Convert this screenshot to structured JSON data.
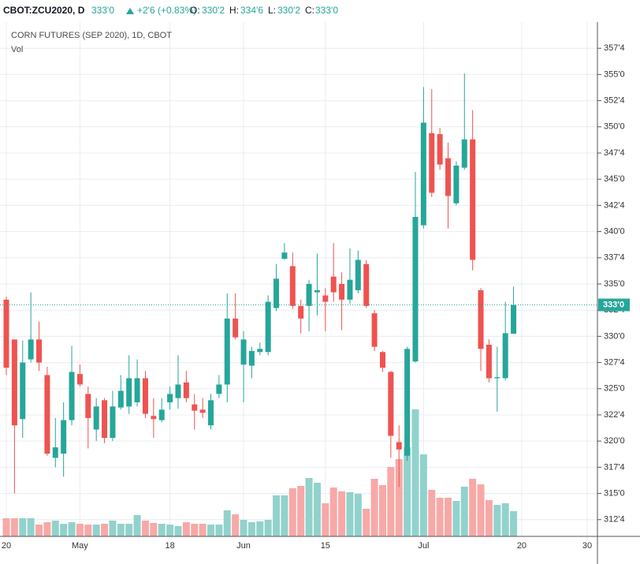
{
  "header": {
    "symbol": "CBOT:ZCU2020, D",
    "last": "333'0",
    "change": "+2'6 (+0.83%)",
    "o_label": "O:",
    "open": "330'2",
    "h_label": "H:",
    "high": "334'6",
    "l_label": "L:",
    "low": "330'2",
    "c_label": "C:",
    "close": "333'0"
  },
  "chart_data": {
    "type": "candlestick",
    "title": "CORN FUTURES (SEP 2020), 1D, CBOT",
    "volume_label": "Vol",
    "categories": [
      "20",
      null,
      null,
      null,
      null,
      null,
      null,
      null,
      null,
      "May",
      null,
      null,
      null,
      null,
      null,
      null,
      null,
      null,
      null,
      null,
      "18",
      null,
      null,
      null,
      null,
      null,
      null,
      null,
      null,
      "Jun",
      null,
      null,
      null,
      null,
      null,
      null,
      null,
      null,
      null,
      "15",
      null,
      null,
      null,
      null,
      null,
      null,
      null,
      null,
      null,
      null,
      null,
      "Jul",
      null,
      null,
      null,
      null,
      null,
      null,
      null,
      null,
      null,
      null,
      null,
      "20",
      null,
      null,
      null,
      null,
      null,
      null,
      null,
      "30"
    ],
    "open": [
      333.5,
      329.7,
      322.1,
      327.8,
      329.7,
      326.3,
      318.4,
      318.8,
      322.0,
      326.4,
      324.5,
      321.1,
      323.9,
      320.3,
      323.2,
      323.3,
      323.7,
      326.0,
      322.4,
      322.0,
      323.7,
      324.1,
      325.6,
      323.5,
      323.0,
      321.5,
      324.5,
      325.4,
      331.7,
      327.3,
      327.2,
      328.5,
      328.5,
      332.7,
      337.4,
      336.7,
      332.9,
      332.9,
      334.2,
      333.9,
      335.7,
      335.0,
      333.5,
      334.4,
      336.9,
      332.2,
      328.5,
      326.6,
      319.9,
      318.6,
      327.6,
      340.6,
      349.4,
      349.3,
      347.0,
      342.7,
      346.1,
      348.8,
      334.4,
      329.2,
      326.0,
      326.0,
      330.25,
      null,
      null,
      null,
      null,
      null,
      null,
      null,
      null,
      null
    ],
    "high": [
      333.8,
      329.7,
      329.6,
      334.2,
      331.4,
      327.1,
      322.2,
      323.7,
      329.1,
      327.3,
      325.2,
      324.1,
      324.1,
      324.8,
      326.3,
      328.2,
      327.8,
      326.7,
      324.1,
      324.1,
      325.2,
      328.2,
      326.7,
      324.5,
      324.1,
      324.5,
      326.3,
      334.1,
      334.1,
      330.5,
      329.0,
      329.4,
      333.9,
      336.9,
      338.9,
      338.0,
      333.5,
      335.4,
      337.9,
      334.6,
      338.9,
      336.1,
      338.4,
      338.2,
      337.3,
      332.5,
      328.6,
      326.7,
      321.5,
      329.0,
      345.7,
      353.8,
      353.6,
      349.9,
      348.5,
      346.7,
      355.1,
      351.6,
      334.6,
      329.7,
      329.0,
      333.3,
      334.75,
      null,
      null,
      null,
      null,
      null,
      null,
      null,
      null,
      null
    ],
    "low": [
      326.3,
      315.0,
      320.3,
      327.5,
      326.7,
      318.6,
      317.5,
      316.6,
      321.5,
      325.2,
      319.3,
      320.0,
      319.8,
      320.0,
      323.0,
      322.6,
      323.3,
      322.2,
      320.3,
      321.8,
      323.0,
      323.1,
      323.7,
      321.1,
      322.2,
      321.1,
      324.1,
      323.7,
      329.7,
      323.7,
      326.0,
      328.2,
      328.2,
      332.4,
      337.3,
      332.6,
      330.3,
      330.5,
      332.0,
      330.5,
      333.3,
      330.6,
      333.1,
      334.1,
      332.7,
      328.6,
      326.6,
      318.4,
      315.6,
      318.1,
      327.5,
      340.3,
      343.3,
      345.9,
      340.3,
      342.5,
      345.9,
      336.3,
      326.7,
      325.6,
      322.8,
      325.8,
      330.25,
      null,
      null,
      null,
      null,
      null,
      null,
      null,
      null,
      null
    ],
    "close": [
      327.0,
      321.5,
      327.5,
      329.7,
      327.5,
      318.8,
      319.4,
      322.0,
      326.6,
      325.4,
      322.2,
      323.3,
      320.3,
      323.3,
      324.8,
      326.0,
      326.0,
      322.6,
      322.1,
      323.0,
      324.5,
      325.4,
      324.1,
      322.9,
      322.7,
      323.9,
      325.4,
      331.7,
      329.9,
      329.7,
      328.6,
      328.8,
      333.3,
      335.5,
      338.0,
      332.9,
      331.7,
      335.0,
      334.4,
      333.3,
      334.2,
      333.5,
      335.4,
      337.3,
      332.9,
      329.0,
      327.0,
      320.5,
      319.2,
      328.8,
      341.4,
      350.4,
      343.7,
      346.4,
      343.4,
      346.3,
      348.8,
      337.3,
      328.8,
      326.0,
      326.1,
      330.3,
      333.0,
      null,
      null,
      null,
      null,
      null,
      null,
      null,
      null,
      null
    ],
    "volume": [
      23,
      23,
      23,
      23,
      15,
      18,
      20,
      16,
      18,
      16,
      15,
      15,
      16,
      20,
      16,
      16,
      27,
      20,
      17,
      16,
      15,
      13,
      18,
      16,
      16,
      15,
      15,
      33,
      28,
      21,
      18,
      19,
      21,
      52,
      52,
      61,
      64,
      74,
      68,
      42,
      62,
      57,
      56,
      54,
      35,
      73,
      65,
      88,
      98,
      113,
      161,
      104,
      59,
      49,
      49,
      45,
      63,
      73,
      66,
      46,
      40,
      42,
      32,
      null,
      null,
      null,
      null,
      null,
      null,
      null,
      null,
      null
    ],
    "up_color": "#26a69a",
    "down_color": "#ef5350",
    "up_volume_color": "#92d2cc",
    "down_volume_color": "#f7a9a7",
    "ylim": [
      310.9,
      360
    ],
    "yticks": [
      {
        "value": 312.5,
        "label": "312'4"
      },
      {
        "value": 315,
        "label": "315'0"
      },
      {
        "value": 317.5,
        "label": "317'4"
      },
      {
        "value": 320,
        "label": "320'0"
      },
      {
        "value": 322.5,
        "label": "322'4"
      },
      {
        "value": 325,
        "label": "325'0"
      },
      {
        "value": 327.5,
        "label": "327'4"
      },
      {
        "value": 330,
        "label": "330'0"
      },
      {
        "value": 332.5,
        "label": "332'4"
      },
      {
        "value": 335,
        "label": "335'0"
      },
      {
        "value": 337.5,
        "label": "337'4"
      },
      {
        "value": 340,
        "label": "340'0"
      },
      {
        "value": 342.5,
        "label": "342'4"
      },
      {
        "value": 345,
        "label": "345'0"
      },
      {
        "value": 347.5,
        "label": "347'4"
      },
      {
        "value": 350,
        "label": "350'0"
      },
      {
        "value": 352.5,
        "label": "352'4"
      },
      {
        "value": 355,
        "label": "355'0"
      },
      {
        "value": 357.5,
        "label": "357'4"
      }
    ],
    "last_price": {
      "value": 333,
      "label": "333'0"
    },
    "grid": true
  }
}
